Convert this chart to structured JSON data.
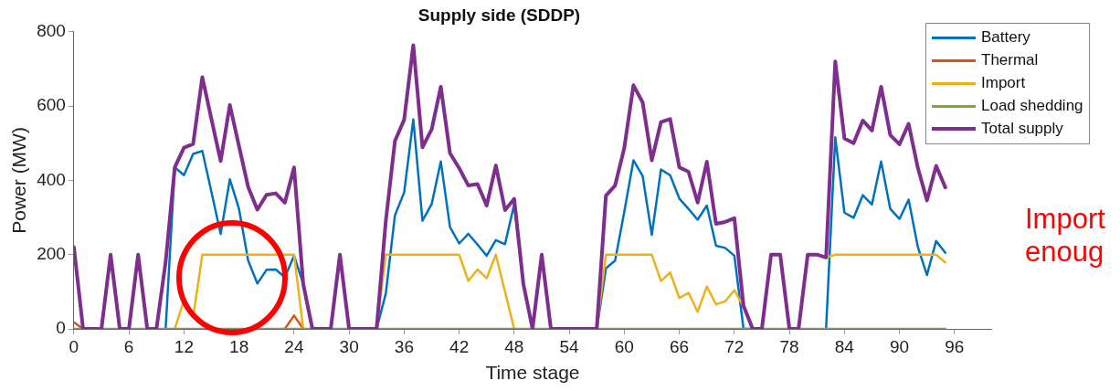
{
  "chart_data": {
    "type": "line",
    "title": "Supply side (SDDP)",
    "xlabel": "Time stage",
    "ylabel": "Power (MW)",
    "x": [
      0,
      1,
      2,
      3,
      4,
      5,
      6,
      7,
      8,
      9,
      10,
      11,
      12,
      13,
      14,
      15,
      16,
      17,
      18,
      19,
      20,
      21,
      22,
      23,
      24,
      25,
      26,
      27,
      28,
      29,
      30,
      31,
      32,
      33,
      34,
      35,
      36,
      37,
      38,
      39,
      40,
      41,
      42,
      43,
      44,
      45,
      46,
      47,
      48,
      49,
      50,
      51,
      52,
      53,
      54,
      55,
      56,
      57,
      58,
      59,
      60,
      61,
      62,
      63,
      64,
      65,
      66,
      67,
      68,
      69,
      70,
      71,
      72,
      73,
      74,
      75,
      76,
      77,
      78,
      79,
      80,
      81,
      82,
      83,
      84,
      85,
      86,
      87,
      88,
      89,
      90,
      91,
      92,
      93,
      94,
      95
    ],
    "xlim": [
      0,
      100
    ],
    "xticks": [
      0,
      6,
      12,
      18,
      24,
      30,
      36,
      42,
      48,
      54,
      60,
      66,
      72,
      78,
      84,
      90,
      96
    ],
    "ylim": [
      0,
      800
    ],
    "yticks": [
      0,
      200,
      400,
      600,
      800
    ],
    "grid": false,
    "legend": "top right",
    "marker": "none",
    "line_style": "solid",
    "series": [
      {
        "name": "Battery",
        "color": "#0072bd",
        "values": [
          null,
          null,
          null,
          null,
          null,
          null,
          null,
          null,
          null,
          null,
          0,
          435,
          414,
          471,
          479,
          368,
          256,
          403,
          323,
          184,
          122,
          159,
          160,
          139,
          197,
          121,
          0,
          null,
          null,
          null,
          null,
          null,
          null,
          0,
          95,
          306,
          367,
          564,
          291,
          336,
          451,
          274,
          230,
          256,
          227,
          197,
          239,
          228,
          336,
          121,
          0,
          null,
          null,
          null,
          null,
          null,
          null,
          0,
          163,
          184,
          315,
          454,
          412,
          253,
          429,
          414,
          351,
          323,
          294,
          332,
          224,
          218,
          197,
          0,
          0,
          null,
          null,
          null,
          null,
          null,
          null,
          null,
          0,
          516,
          313,
          299,
          360,
          335,
          451,
          323,
          296,
          348,
          221,
          145,
          237,
          205
        ]
      },
      {
        "name": "Thermal",
        "color": "#d95319",
        "values": [
          18,
          0,
          null,
          null,
          null,
          null,
          null,
          null,
          null,
          null,
          null,
          null,
          null,
          null,
          null,
          null,
          null,
          null,
          null,
          null,
          null,
          null,
          null,
          0,
          36,
          0,
          null,
          null,
          null,
          null,
          null,
          null,
          null,
          null,
          null,
          null,
          null,
          null,
          null,
          null,
          null,
          null,
          null,
          null,
          null,
          null,
          null,
          null,
          null,
          null,
          null,
          null,
          null,
          null,
          null,
          null,
          null,
          null,
          null,
          null,
          null,
          null,
          null,
          null,
          null,
          null,
          null,
          null,
          null,
          null,
          null,
          null,
          null,
          null,
          null,
          null,
          null,
          null,
          null,
          null,
          null,
          null,
          null,
          null,
          null,
          null,
          null,
          null,
          null,
          null,
          null,
          null,
          null,
          null,
          null,
          null
        ]
      },
      {
        "name": "Import",
        "color": "#edb120",
        "values": [
          null,
          null,
          null,
          null,
          null,
          null,
          null,
          null,
          null,
          null,
          null,
          0,
          78,
          32,
          200,
          200,
          200,
          200,
          200,
          200,
          200,
          200,
          200,
          200,
          200,
          0,
          null,
          null,
          null,
          null,
          null,
          null,
          null,
          0,
          200,
          200,
          200,
          200,
          200,
          200,
          200,
          200,
          200,
          129,
          160,
          136,
          200,
          100,
          0,
          null,
          null,
          null,
          null,
          null,
          null,
          null,
          null,
          0,
          200,
          200,
          200,
          200,
          200,
          200,
          129,
          152,
          83,
          97,
          46,
          114,
          66,
          74,
          104,
          60,
          0,
          null,
          null,
          null,
          null,
          null,
          null,
          null,
          192,
          200,
          200,
          200,
          200,
          200,
          200,
          200,
          200,
          200,
          200,
          200,
          200,
          179
        ]
      },
      {
        "name": "Load shedding",
        "color": "#77ac30",
        "values": [
          0,
          0,
          0,
          0,
          0,
          0,
          0,
          0,
          0,
          0,
          0,
          0,
          0,
          0,
          0,
          0,
          0,
          0,
          0,
          0,
          0,
          0,
          0,
          0,
          0,
          0,
          0,
          0,
          0,
          0,
          0,
          0,
          0,
          0,
          0,
          0,
          0,
          0,
          0,
          0,
          0,
          0,
          0,
          0,
          0,
          0,
          0,
          0,
          0,
          0,
          0,
          0,
          0,
          0,
          0,
          0,
          0,
          0,
          0,
          0,
          0,
          0,
          0,
          0,
          0,
          0,
          0,
          0,
          0,
          0,
          0,
          0,
          0,
          0,
          0,
          0,
          0,
          0,
          0,
          0,
          0,
          0,
          0,
          0,
          0,
          0,
          0,
          0,
          0,
          0,
          0,
          0,
          0,
          0,
          0,
          0
        ]
      },
      {
        "name": "Total supply",
        "color": "#7e2f8e",
        "values": [
          220,
          0,
          0,
          0,
          200,
          0,
          0,
          200,
          0,
          0,
          180,
          435,
          488,
          498,
          678,
          564,
          452,
          603,
          492,
          382,
          321,
          361,
          365,
          340,
          435,
          121,
          0,
          0,
          0,
          200,
          0,
          0,
          0,
          0,
          290,
          506,
          563,
          764,
          489,
          537,
          652,
          473,
          433,
          386,
          390,
          332,
          440,
          320,
          350,
          121,
          0,
          200,
          0,
          0,
          0,
          0,
          0,
          0,
          359,
          386,
          487,
          656,
          610,
          454,
          557,
          565,
          435,
          423,
          340,
          450,
          283,
          288,
          298,
          62,
          0,
          0,
          200,
          200,
          0,
          0,
          200,
          200,
          192,
          720,
          513,
          500,
          561,
          534,
          652,
          522,
          497,
          552,
          434,
          346,
          439,
          381
        ]
      }
    ],
    "annotations": [
      "Import",
      "enoug"
    ]
  }
}
